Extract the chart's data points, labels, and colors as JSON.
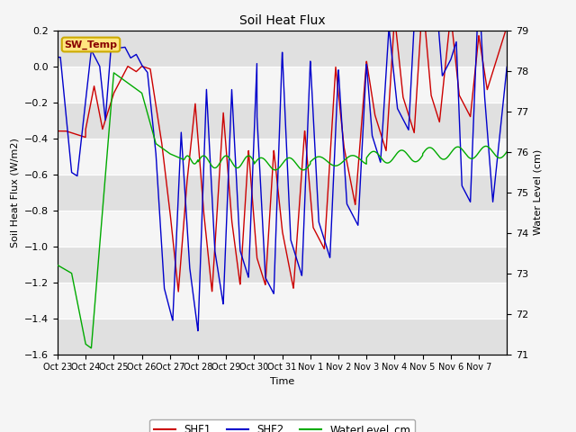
{
  "title": "Soil Heat Flux",
  "ylabel_left": "Soil Heat Flux (W/m2)",
  "ylabel_right": "Water Level (cm)",
  "xlabel": "Time",
  "ylim_left": [
    -1.6,
    0.2
  ],
  "ylim_right": [
    71.0,
    79.0
  ],
  "yticks_left": [
    -1.6,
    -1.4,
    -1.2,
    -1.0,
    -0.8,
    -0.6,
    -0.4,
    -0.2,
    0.0,
    0.2
  ],
  "yticks_right": [
    71.0,
    72.0,
    73.0,
    74.0,
    75.0,
    76.0,
    77.0,
    78.0,
    79.0
  ],
  "xtick_labels": [
    "Oct 23",
    "Oct 24",
    "Oct 25",
    "Oct 26",
    "Oct 27",
    "Oct 28",
    "Oct 29",
    "Oct 30",
    "Oct 31",
    "Nov 1",
    "Nov 2",
    "Nov 3",
    "Nov 4",
    "Nov 5",
    "Nov 6",
    "Nov 7"
  ],
  "color_shf1": "#cc0000",
  "color_shf2": "#0000cc",
  "color_water": "#00aa00",
  "bg_color": "#f5f5f5",
  "band_color_dark": "#e0e0e0",
  "band_color_light": "#f5f5f5",
  "legend_items": [
    "SHF1",
    "SHF2",
    "WaterLevel_cm"
  ],
  "sw_temp_box_facecolor": "#ffe680",
  "sw_temp_box_edgecolor": "#ccaa00",
  "sw_temp_text_color": "#880000"
}
